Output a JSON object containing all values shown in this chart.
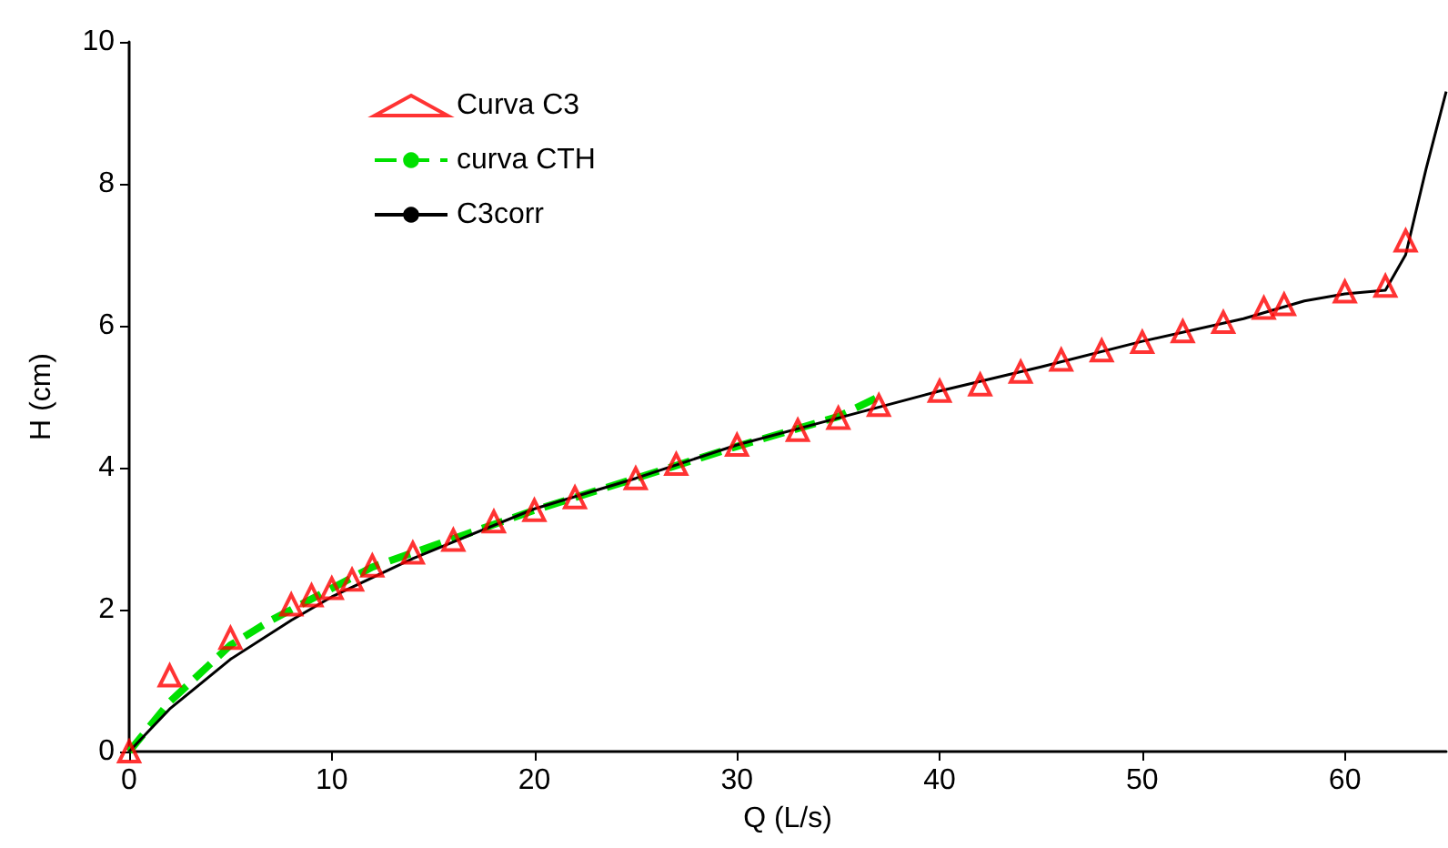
{
  "chart_data": {
    "type": "scatter",
    "xlabel": "Q (L/s)",
    "ylabel": "H (cm)",
    "xlim": [
      0,
      65
    ],
    "xticks": [
      0,
      10,
      20,
      30,
      40,
      50,
      60
    ],
    "ylim": [
      0,
      10
    ],
    "yticks": [
      0,
      2,
      4,
      6,
      8,
      10
    ],
    "grid": false,
    "legend": "top left",
    "series": [
      {
        "name": "Curva C3",
        "color": "#ff0000",
        "marker": "triangle",
        "x": [
          0,
          2,
          5,
          8,
          9,
          10,
          11,
          12,
          14,
          16,
          18,
          20,
          22,
          25,
          27,
          30,
          33,
          35,
          37,
          40,
          42,
          44,
          46,
          48,
          50,
          52,
          54,
          56,
          57,
          60,
          62,
          63
        ],
        "values": [
          0,
          1.07,
          1.6,
          2.07,
          2.2,
          2.3,
          2.42,
          2.62,
          2.8,
          2.98,
          3.24,
          3.4,
          3.58,
          3.85,
          4.05,
          4.32,
          4.53,
          4.7,
          4.88,
          5.08,
          5.17,
          5.35,
          5.52,
          5.65,
          5.77,
          5.92,
          6.05,
          6.25,
          6.3,
          6.48,
          6.56,
          7.2
        ]
      },
      {
        "name": "curva CTH",
        "type": "line",
        "color": "#00e000",
        "line_style": "dashed",
        "marker": "none",
        "x": [
          0,
          2,
          5,
          7,
          10,
          12,
          15,
          20,
          25,
          30,
          35,
          37
        ],
        "values": [
          0,
          0.7,
          1.5,
          1.85,
          2.3,
          2.6,
          2.9,
          3.4,
          3.85,
          4.3,
          4.72,
          5.0
        ]
      },
      {
        "name": "C3corr",
        "type": "line",
        "color": "#000000",
        "line_style": "solid",
        "marker": "none",
        "x": [
          0,
          2,
          5,
          8,
          10,
          14,
          20,
          25,
          30,
          35,
          40,
          45,
          50,
          55,
          58,
          60,
          62,
          63,
          63.5,
          64,
          65
        ],
        "values": [
          0,
          0.6,
          1.3,
          1.85,
          2.18,
          2.72,
          3.42,
          3.85,
          4.32,
          4.7,
          5.08,
          5.42,
          5.78,
          6.1,
          6.35,
          6.45,
          6.5,
          7.0,
          7.6,
          8.2,
          9.3
        ]
      }
    ]
  }
}
